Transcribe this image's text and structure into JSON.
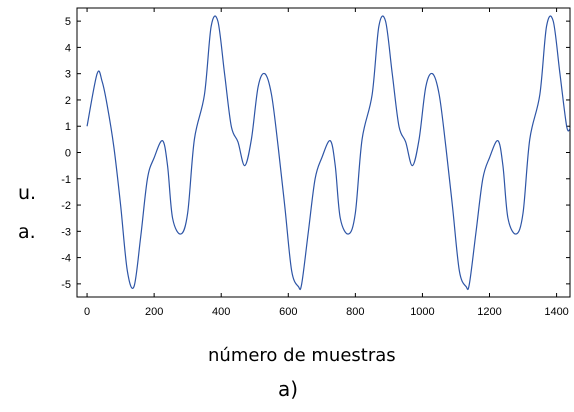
{
  "chart_data": {
    "type": "line",
    "title": "",
    "xlabel": "número de muestras",
    "ylabel_lines": [
      "u.",
      "a."
    ],
    "panel_label": "a)",
    "xlim": [
      -30,
      1440
    ],
    "ylim": [
      -5.5,
      5.5
    ],
    "xticks": [
      0,
      200,
      400,
      600,
      800,
      1000,
      1200,
      1400
    ],
    "yticks": [
      -5,
      -4,
      -3,
      -2,
      -1,
      0,
      1,
      2,
      3,
      4,
      5
    ],
    "grid": false,
    "legend": "none",
    "series": [
      {
        "color": "#2e55a6",
        "period": 500,
        "x": [
          0,
          30,
          45,
          60,
          80,
          100,
          120,
          140,
          160,
          180,
          200,
          225,
          240,
          255,
          280,
          300,
          320,
          350,
          370,
          390,
          410,
          430,
          450,
          470,
          490,
          510,
          530,
          550,
          570,
          590,
          610,
          630,
          640,
          660,
          680,
          700,
          725,
          740,
          755,
          780,
          800,
          820,
          850,
          870,
          890,
          910,
          930,
          950,
          970,
          990,
          1010,
          1030,
          1050,
          1070,
          1090,
          1110,
          1130,
          1140,
          1160,
          1180,
          1200,
          1225,
          1240,
          1255,
          1280,
          1300,
          1320,
          1350,
          1370,
          1390,
          1410,
          1430,
          1440
        ],
        "y": [
          1.0,
          3.0,
          2.7,
          1.8,
          0.2,
          -2.0,
          -4.5,
          -5.1,
          -3.2,
          -1.0,
          -0.2,
          0.45,
          -0.5,
          -2.5,
          -3.1,
          -2.3,
          0.5,
          2.2,
          4.8,
          5.0,
          3.0,
          1.0,
          0.4,
          -0.5,
          0.5,
          2.5,
          3.0,
          2.2,
          0.2,
          -2.1,
          -4.5,
          -5.1,
          -5.0,
          -3.0,
          -1.0,
          -0.2,
          0.45,
          -0.5,
          -2.5,
          -3.1,
          -2.3,
          0.5,
          2.2,
          4.8,
          5.0,
          3.0,
          1.0,
          0.4,
          -0.5,
          0.5,
          2.5,
          3.0,
          2.2,
          0.2,
          -2.1,
          -4.5,
          -5.1,
          -5.0,
          -3.0,
          -1.0,
          -0.2,
          0.45,
          -0.5,
          -2.5,
          -3.1,
          -2.3,
          0.5,
          2.2,
          4.8,
          5.0,
          3.0,
          1.0,
          0.9
        ]
      }
    ]
  }
}
